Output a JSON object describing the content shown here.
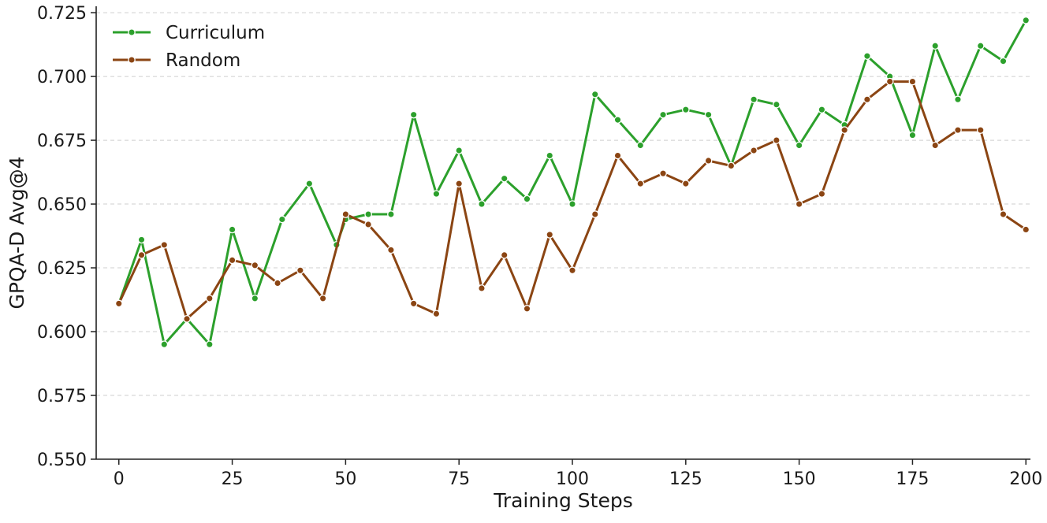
{
  "chart_data": {
    "type": "line",
    "title": "",
    "xlabel": "Training Steps",
    "ylabel": "GPQA-D Avg@4",
    "xlim": [
      -5,
      201
    ],
    "ylim": [
      0.55,
      0.7275
    ],
    "xticks": [
      0,
      25,
      50,
      75,
      100,
      125,
      150,
      175,
      200
    ],
    "xtick_labels": [
      "0",
      "25",
      "50",
      "75",
      "100",
      "125",
      "150",
      "175",
      "200"
    ],
    "yticks": [
      0.55,
      0.575,
      0.6,
      0.625,
      0.65,
      0.675,
      0.7,
      0.725
    ],
    "ytick_labels": [
      "0.550",
      "0.575",
      "0.600",
      "0.625",
      "0.650",
      "0.675",
      "0.700",
      "0.725"
    ],
    "grid": "y-dashed",
    "legend_position": "top-left",
    "series": [
      {
        "name": "Curriculum",
        "color": "#2ca02c",
        "x": [
          0,
          5,
          10,
          15,
          20,
          25,
          30,
          36,
          42,
          48,
          50,
          55,
          60,
          65,
          70,
          75,
          80,
          85,
          90,
          95,
          100,
          105,
          110,
          115,
          120,
          125,
          130,
          135,
          140,
          145,
          150,
          155,
          160,
          165,
          170,
          175,
          180,
          185,
          190,
          195,
          200
        ],
        "values": [
          0.611,
          0.636,
          0.595,
          0.605,
          0.595,
          0.64,
          0.613,
          0.644,
          0.658,
          0.634,
          0.644,
          0.646,
          0.646,
          0.685,
          0.654,
          0.671,
          0.65,
          0.66,
          0.652,
          0.669,
          0.65,
          0.693,
          0.683,
          0.673,
          0.685,
          0.687,
          0.685,
          0.665,
          0.691,
          0.689,
          0.673,
          0.687,
          0.681,
          0.708,
          0.7,
          0.677,
          0.712,
          0.691,
          0.712,
          0.706,
          0.722
        ]
      },
      {
        "name": "Random",
        "color": "#8b4513",
        "x": [
          0,
          5,
          10,
          15,
          20,
          25,
          30,
          35,
          40,
          45,
          50,
          55,
          60,
          65,
          70,
          75,
          80,
          85,
          90,
          95,
          100,
          105,
          110,
          115,
          120,
          125,
          130,
          135,
          140,
          145,
          150,
          155,
          160,
          165,
          170,
          175,
          180,
          185,
          190,
          195,
          200
        ],
        "values": [
          0.611,
          0.63,
          0.634,
          0.605,
          0.613,
          0.628,
          0.626,
          0.619,
          0.624,
          0.613,
          0.646,
          0.642,
          0.632,
          0.611,
          0.607,
          0.658,
          0.617,
          0.63,
          0.609,
          0.638,
          0.624,
          0.646,
          0.669,
          0.658,
          0.662,
          0.658,
          0.667,
          0.665,
          0.671,
          0.675,
          0.65,
          0.654,
          0.679,
          0.691,
          0.698,
          0.698,
          0.673,
          0.679,
          0.679,
          0.646,
          0.64
        ]
      }
    ]
  }
}
